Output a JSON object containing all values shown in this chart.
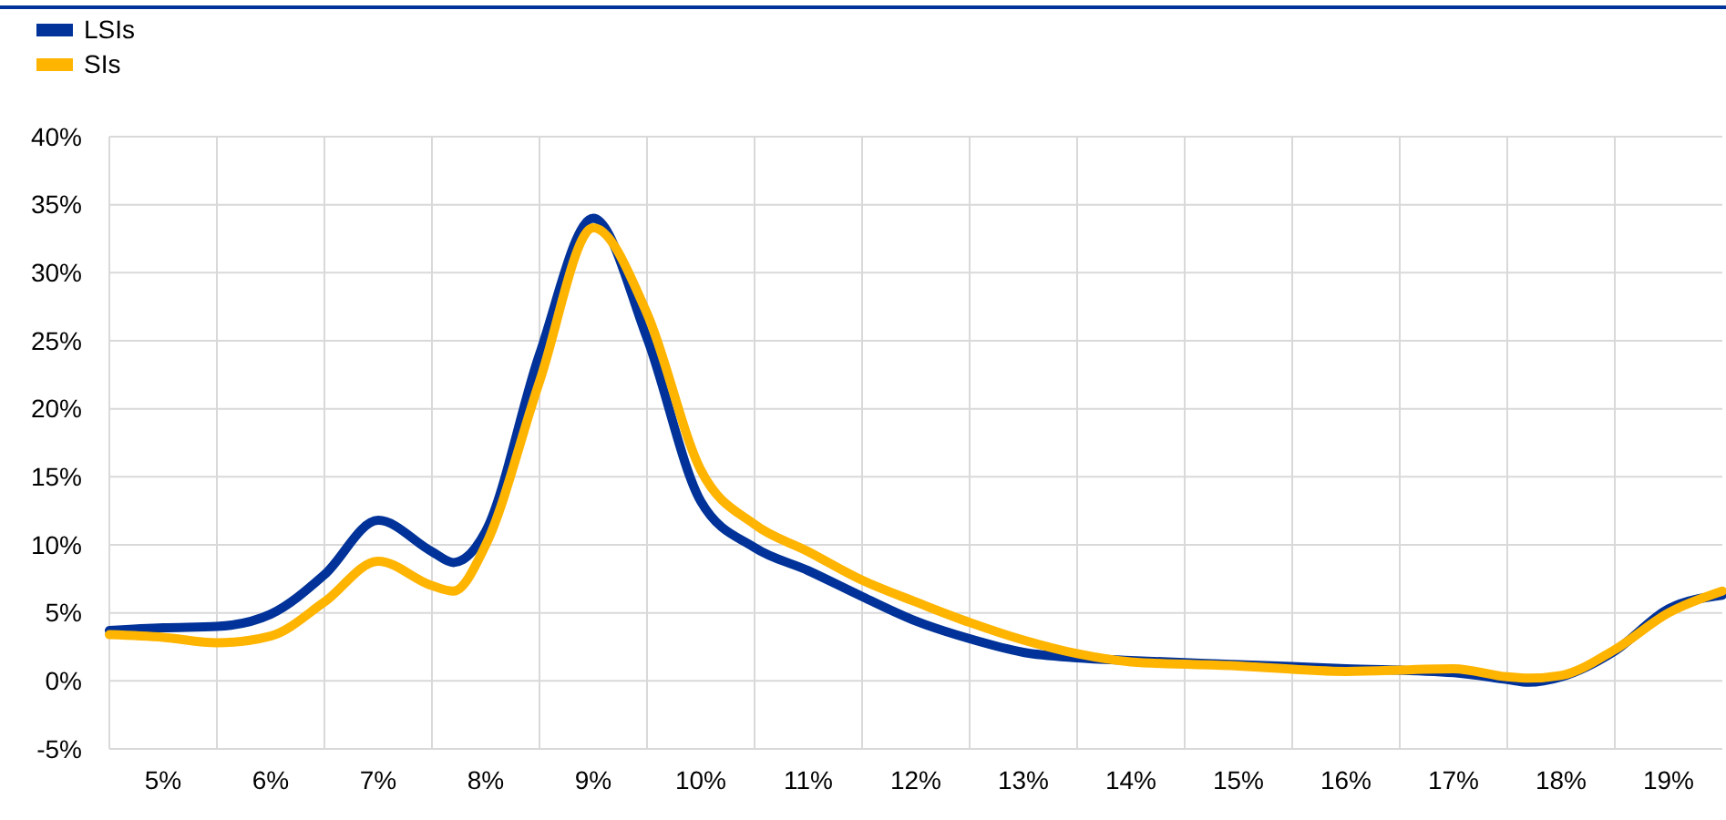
{
  "chart_data": {
    "type": "line",
    "x": [
      4.5,
      5,
      5.5,
      6,
      6.5,
      7,
      7.5,
      7.7,
      8,
      8.5,
      9,
      9.5,
      10,
      10.5,
      11,
      11.5,
      12,
      12.5,
      13,
      13.5,
      14,
      15,
      16,
      17,
      17.5,
      17.7,
      18,
      18.5,
      19,
      19.5
    ],
    "series": [
      {
        "name": "LSIs",
        "color": "#003299",
        "values": [
          3.7,
          3.9,
          4.0,
          4.9,
          7.8,
          11.8,
          9.5,
          8.7,
          11,
          24,
          34,
          25.2,
          13.2,
          9.8,
          8.1,
          6.2,
          4.4,
          3.1,
          2.1,
          1.7,
          1.5,
          1.2,
          0.9,
          0.6,
          0.1,
          -0.1,
          0.3,
          2.2,
          5.3,
          6.3
        ]
      },
      {
        "name": "SIs",
        "color": "#ffb400",
        "values": [
          3.4,
          3.2,
          2.8,
          3.3,
          5.8,
          8.8,
          7.0,
          6.6,
          10,
          22,
          33.3,
          27,
          15.5,
          11.5,
          9.5,
          7.4,
          5.8,
          4.3,
          3.0,
          2.0,
          1.4,
          1.1,
          0.7,
          0.9,
          0.3,
          0.2,
          0.4,
          2.3,
          5.0,
          6.6
        ]
      }
    ],
    "xlim": [
      4.5,
      19.5
    ],
    "xticks": [
      {
        "value": 5,
        "label": "5%"
      },
      {
        "value": 6,
        "label": "6%"
      },
      {
        "value": 7,
        "label": "7%"
      },
      {
        "value": 8,
        "label": "8%"
      },
      {
        "value": 9,
        "label": "9%"
      },
      {
        "value": 10,
        "label": "10%"
      },
      {
        "value": 11,
        "label": "11%"
      },
      {
        "value": 12,
        "label": "12%"
      },
      {
        "value": 13,
        "label": "13%"
      },
      {
        "value": 14,
        "label": "14%"
      },
      {
        "value": 15,
        "label": "15%"
      },
      {
        "value": 16,
        "label": "16%"
      },
      {
        "value": 17,
        "label": "17%"
      },
      {
        "value": 18,
        "label": "18%"
      },
      {
        "value": 19,
        "label": "19%"
      },
      {
        "value": 5.5,
        "label": null
      },
      {
        "value": 6.5,
        "label": null
      },
      {
        "value": 7.5,
        "label": null
      },
      {
        "value": 8.5,
        "label": null
      },
      {
        "value": 9.5,
        "label": null
      },
      {
        "value": 10.5,
        "label": null
      },
      {
        "value": 11.5,
        "label": null
      },
      {
        "value": 12.5,
        "label": null
      },
      {
        "value": 13.5,
        "label": null
      },
      {
        "value": 14.5,
        "label": null
      },
      {
        "value": 15.5,
        "label": null
      },
      {
        "value": 16.5,
        "label": null
      },
      {
        "value": 17.5,
        "label": null
      },
      {
        "value": 18.5,
        "label": null
      }
    ],
    "ylim": [
      -5,
      40
    ],
    "yticks": [
      {
        "value": -5,
        "label": "-5%"
      },
      {
        "value": 0,
        "label": "0%"
      },
      {
        "value": 5,
        "label": "5%"
      },
      {
        "value": 10,
        "label": "10%"
      },
      {
        "value": 15,
        "label": "15%"
      },
      {
        "value": 20,
        "label": "20%"
      },
      {
        "value": 25,
        "label": "25%"
      },
      {
        "value": 30,
        "label": "30%"
      },
      {
        "value": 35,
        "label": "35%"
      },
      {
        "value": 40,
        "label": "40%"
      }
    ],
    "grid": true,
    "legend": "top left",
    "line_style": "solid",
    "marker": "none"
  }
}
